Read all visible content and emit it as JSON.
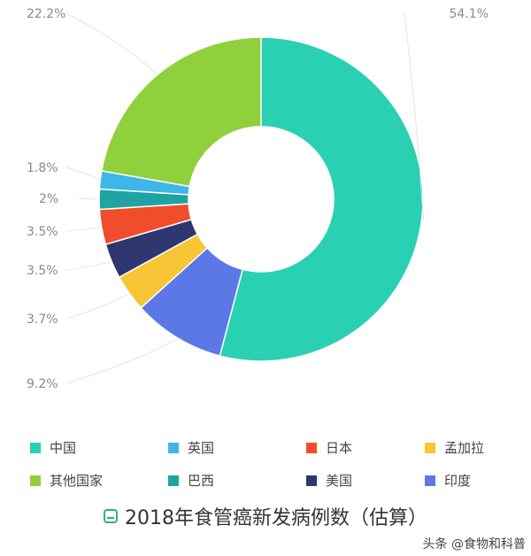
{
  "chart_data": {
    "type": "pie",
    "variant": "donut",
    "title": "2018年食管癌新发病例数（估算）",
    "categories": [
      "中国",
      "印度",
      "孟加拉",
      "美国",
      "日本",
      "巴西",
      "英国",
      "其他国家"
    ],
    "values": [
      54.1,
      9.2,
      3.7,
      3.5,
      3.5,
      2.0,
      1.8,
      22.2
    ],
    "labels": [
      "54.1%",
      "9.2%",
      "3.7%",
      "3.5%",
      "3.5%",
      "2%",
      "1.8%",
      "22.2%"
    ],
    "colors": [
      "#2ad0b2",
      "#5b78e6",
      "#f7c536",
      "#2e3770",
      "#f04d2d",
      "#1fa3a5",
      "#3db6ea",
      "#8fd03c"
    ],
    "legend_position": "bottom",
    "legend_order": [
      "中国",
      "英国",
      "日本",
      "孟加拉",
      "其他国家",
      "巴西",
      "美国",
      "印度"
    ]
  },
  "watermark": "头条 @食物和科普"
}
